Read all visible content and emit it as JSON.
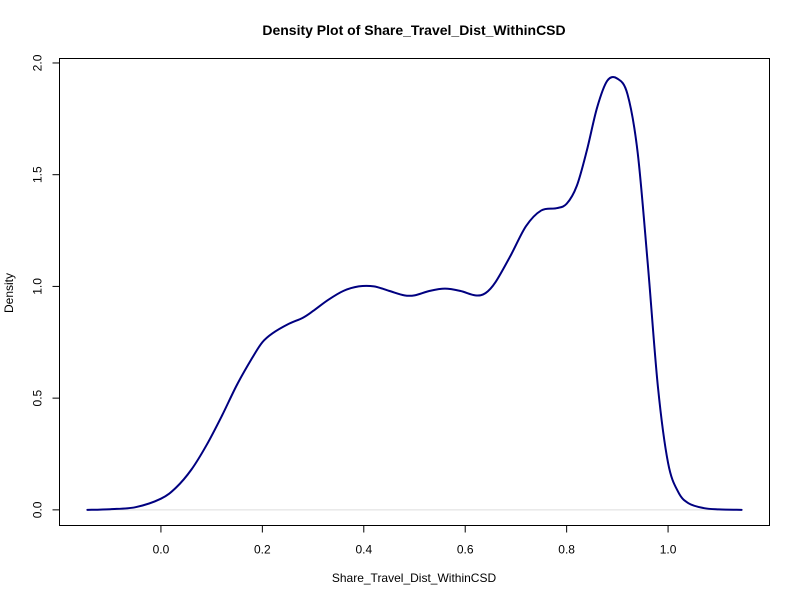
{
  "chart_data": {
    "type": "line",
    "title": "Density Plot of Share_Travel_Dist_WithinCSD",
    "xlabel": "Share_Travel_Dist_WithinCSD",
    "ylabel": "Density",
    "xlim": [
      -0.2,
      1.2
    ],
    "ylim": [
      -0.07,
      2.02
    ],
    "x_ticks": [
      0.0,
      0.2,
      0.4,
      0.6,
      0.8,
      1.0
    ],
    "x_tick_labels": [
      "0.0",
      "0.2",
      "0.4",
      "0.6",
      "0.8",
      "1.0"
    ],
    "y_ticks": [
      0.0,
      0.5,
      1.0,
      1.5,
      2.0
    ],
    "y_tick_labels": [
      "0.0",
      "0.5",
      "1.0",
      "1.5",
      "2.0"
    ],
    "baseline": 0,
    "colors": {
      "line": "#000080",
      "baseline": "#dddddd"
    },
    "series": [
      {
        "x": [
          -0.145,
          -0.1,
          -0.05,
          0.0,
          0.03,
          0.06,
          0.09,
          0.12,
          0.15,
          0.18,
          0.2,
          0.22,
          0.25,
          0.28,
          0.3,
          0.33,
          0.36,
          0.39,
          0.42,
          0.45,
          0.48,
          0.5,
          0.53,
          0.56,
          0.59,
          0.62,
          0.64,
          0.66,
          0.69,
          0.72,
          0.75,
          0.78,
          0.8,
          0.82,
          0.84,
          0.86,
          0.88,
          0.9,
          0.92,
          0.94,
          0.96,
          0.98,
          1.0,
          1.02,
          1.04,
          1.07,
          1.1,
          1.145
        ],
        "y": [
          0.0,
          0.003,
          0.012,
          0.05,
          0.1,
          0.18,
          0.29,
          0.42,
          0.56,
          0.68,
          0.75,
          0.79,
          0.83,
          0.86,
          0.89,
          0.94,
          0.98,
          1.0,
          1.0,
          0.98,
          0.96,
          0.96,
          0.98,
          0.99,
          0.98,
          0.96,
          0.97,
          1.02,
          1.14,
          1.27,
          1.34,
          1.35,
          1.37,
          1.45,
          1.61,
          1.8,
          1.92,
          1.93,
          1.86,
          1.6,
          1.1,
          0.55,
          0.21,
          0.08,
          0.03,
          0.008,
          0.002,
          0.0
        ]
      }
    ]
  }
}
